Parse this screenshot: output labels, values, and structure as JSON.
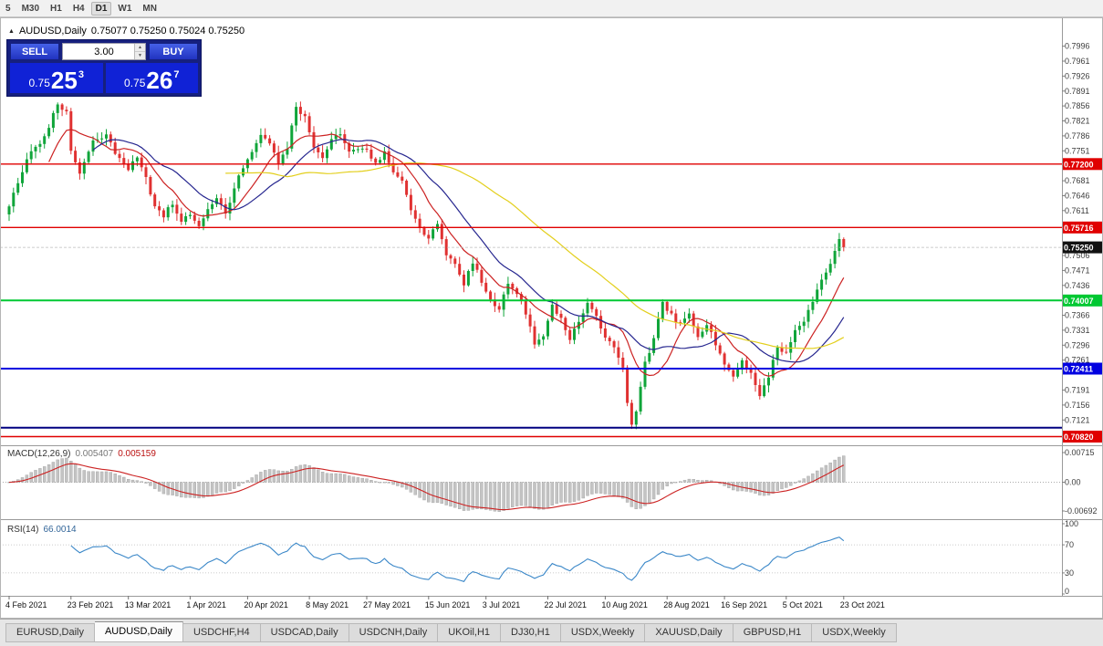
{
  "toolbar": {
    "timeframes": [
      {
        "label": "5",
        "active": false
      },
      {
        "label": "M30",
        "active": false
      },
      {
        "label": "H1",
        "active": false
      },
      {
        "label": "H4",
        "active": false
      },
      {
        "label": "D1",
        "active": true
      },
      {
        "label": "W1",
        "active": false
      },
      {
        "label": "MN",
        "active": false
      }
    ]
  },
  "chart_header": {
    "symbol": "AUDUSD,Daily",
    "ohlc": "0.75077 0.75250 0.75024 0.75250"
  },
  "trade_panel": {
    "sell_label": "SELL",
    "buy_label": "BUY",
    "volume": "3.00",
    "sell_price": {
      "prefix": "0.75",
      "big": "25",
      "sup": "3"
    },
    "buy_price": {
      "prefix": "0.75",
      "big": "26",
      "sup": "7"
    }
  },
  "price_scale": {
    "ticks": [
      "0.7996",
      "0.7961",
      "0.7926",
      "0.7891",
      "0.7856",
      "0.7821",
      "0.7786",
      "0.7751",
      "0.7716",
      "0.7681",
      "0.7646",
      "0.7611",
      "0.7576",
      "0.7541",
      "0.7506",
      "0.7471",
      "0.7436",
      "0.7401",
      "0.7366",
      "0.7331",
      "0.7296",
      "0.7261",
      "0.7226",
      "0.7191",
      "0.7156",
      "0.7121",
      "0.7086"
    ],
    "boxed": [
      {
        "label": "0.77200",
        "price": 0.772,
        "bg": "#e00000",
        "fg": "#ffffff"
      },
      {
        "label": "0.75716",
        "price": 0.75716,
        "bg": "#e00000",
        "fg": "#ffffff"
      },
      {
        "label": "0.75250",
        "price": 0.7525,
        "bg": "#111111",
        "fg": "#ffffff"
      },
      {
        "label": "0.74007",
        "price": 0.74007,
        "bg": "#00c832",
        "fg": "#ffffff"
      },
      {
        "label": "0.72411",
        "price": 0.72411,
        "bg": "#0000e0",
        "fg": "#ffffff"
      },
      {
        "label": "0.70820",
        "price": 0.7082,
        "bg": "#e00000",
        "fg": "#ffffff"
      }
    ]
  },
  "macd_panel": {
    "name": "MACD(12,26,9)",
    "main_value": "0.005407",
    "signal_value": "0.005159",
    "scale_labels": [
      "0.00715",
      "0.00",
      "-0.00692"
    ]
  },
  "rsi_panel": {
    "name": "RSI(14)",
    "value": "66.0014",
    "scale_labels": [
      "100",
      "70",
      "30",
      "0"
    ]
  },
  "tabs": {
    "active_index": 1,
    "items": [
      "EURUSD,Daily",
      "AUDUSD,Daily",
      "USDCHF,H4",
      "USDCAD,Daily",
      "USDCNH,Daily",
      "UKOil,H1",
      "DJ30,H1",
      "USDX,Weekly",
      "XAUUSD,Daily",
      "GBPUSD,H1",
      "USDX,Weekly"
    ]
  },
  "chart_data": {
    "type": "candlestick",
    "symbol": "AUDUSD",
    "timeframe": "Daily",
    "bars": 190,
    "last_close": 0.7525,
    "visible_range": {
      "price_top": 0.804,
      "price_bottom": 0.7066
    },
    "x_labels": [
      "4 Feb 2021",
      "23 Feb 2021",
      "13 Mar 2021",
      "1 Apr 2021",
      "20 Apr 2021",
      "8 May 2021",
      "27 May 2021",
      "15 Jun 2021",
      "3 Jul 2021",
      "22 Jul 2021",
      "10 Aug 2021",
      "28 Aug 2021",
      "16 Sep 2021",
      "5 Oct 2021",
      "23 Oct 2021"
    ],
    "price_path_anchors": [
      [
        0,
        0.762
      ],
      [
        2,
        0.768
      ],
      [
        5,
        0.7755
      ],
      [
        8,
        0.778
      ],
      [
        10,
        0.784
      ],
      [
        11,
        0.7858
      ],
      [
        13,
        0.7842
      ],
      [
        14,
        0.7755
      ],
      [
        16,
        0.77
      ],
      [
        19,
        0.777
      ],
      [
        22,
        0.7785
      ],
      [
        25,
        0.773
      ],
      [
        27,
        0.771
      ],
      [
        29,
        0.774
      ],
      [
        31,
        0.7685
      ],
      [
        33,
        0.762
      ],
      [
        35,
        0.76
      ],
      [
        37,
        0.763
      ],
      [
        39,
        0.7585
      ],
      [
        41,
        0.76
      ],
      [
        43,
        0.757
      ],
      [
        45,
        0.7615
      ],
      [
        47,
        0.764
      ],
      [
        49,
        0.7605
      ],
      [
        51,
        0.7665
      ],
      [
        53,
        0.7715
      ],
      [
        55,
        0.7745
      ],
      [
        57,
        0.779
      ],
      [
        59,
        0.777
      ],
      [
        61,
        0.7725
      ],
      [
        63,
        0.776
      ],
      [
        65,
        0.7855
      ],
      [
        67,
        0.783
      ],
      [
        69,
        0.7755
      ],
      [
        71,
        0.773
      ],
      [
        73,
        0.778
      ],
      [
        75,
        0.779
      ],
      [
        77,
        0.7745
      ],
      [
        79,
        0.7755
      ],
      [
        81,
        0.775
      ],
      [
        83,
        0.772
      ],
      [
        85,
        0.7745
      ],
      [
        87,
        0.7705
      ],
      [
        89,
        0.768
      ],
      [
        91,
        0.761
      ],
      [
        93,
        0.7565
      ],
      [
        95,
        0.7545
      ],
      [
        97,
        0.758
      ],
      [
        99,
        0.751
      ],
      [
        101,
        0.7485
      ],
      [
        103,
        0.744
      ],
      [
        105,
        0.749
      ],
      [
        107,
        0.7445
      ],
      [
        109,
        0.74
      ],
      [
        111,
        0.738
      ],
      [
        113,
        0.7445
      ],
      [
        115,
        0.742
      ],
      [
        117,
        0.737
      ],
      [
        119,
        0.73
      ],
      [
        121,
        0.732
      ],
      [
        123,
        0.739
      ],
      [
        125,
        0.7355
      ],
      [
        127,
        0.731
      ],
      [
        129,
        0.735
      ],
      [
        131,
        0.74
      ],
      [
        133,
        0.736
      ],
      [
        135,
        0.7315
      ],
      [
        137,
        0.729
      ],
      [
        139,
        0.724
      ],
      [
        140,
        0.716
      ],
      [
        141,
        0.711
      ],
      [
        142,
        0.7145
      ],
      [
        144,
        0.7255
      ],
      [
        146,
        0.731
      ],
      [
        148,
        0.7395
      ],
      [
        150,
        0.7365
      ],
      [
        152,
        0.7345
      ],
      [
        154,
        0.737
      ],
      [
        156,
        0.731
      ],
      [
        158,
        0.7345
      ],
      [
        160,
        0.73
      ],
      [
        162,
        0.725
      ],
      [
        164,
        0.722
      ],
      [
        166,
        0.7265
      ],
      [
        168,
        0.723
      ],
      [
        170,
        0.718
      ],
      [
        172,
        0.7225
      ],
      [
        174,
        0.729
      ],
      [
        176,
        0.728
      ],
      [
        178,
        0.733
      ],
      [
        180,
        0.7355
      ],
      [
        182,
        0.74
      ],
      [
        184,
        0.7445
      ],
      [
        186,
        0.749
      ],
      [
        188,
        0.7545
      ],
      [
        189,
        0.7525
      ]
    ],
    "colors": {
      "up": "#10a53a",
      "down": "#e03131"
    },
    "levels": [
      {
        "price": 0.772,
        "color": "#e00000",
        "width": 1.4,
        "label": "0.77200"
      },
      {
        "price": 0.75716,
        "color": "#e00000",
        "width": 1.4,
        "label": "0.75716"
      },
      {
        "price": 0.74007,
        "color": "#00c832",
        "width": 2,
        "label": "0.74007"
      },
      {
        "price": 0.72411,
        "color": "#0000e0",
        "width": 2,
        "label": "0.72411"
      },
      {
        "price": 0.7103,
        "color": "#000080",
        "width": 2,
        "label": null
      },
      {
        "price": 0.7082,
        "color": "#e00000",
        "width": 1.4,
        "label": "0.70820"
      }
    ],
    "indicators": {
      "moving_averages": [
        {
          "period": 10,
          "color": "#cc2222"
        },
        {
          "period": 20,
          "color": "#26268f"
        },
        {
          "period": 50,
          "color": "#e3cf1c"
        }
      ],
      "macd": {
        "fast": 12,
        "slow": 26,
        "signal": 9,
        "histogram_color": "#c4c4c4",
        "signal_color": "#cc2222",
        "upper_level": 0.00715,
        "lower_level": -0.00692
      },
      "rsi": {
        "period": 14,
        "color": "#3a87c8",
        "upper_level": 70,
        "lower_level": 30
      }
    }
  }
}
